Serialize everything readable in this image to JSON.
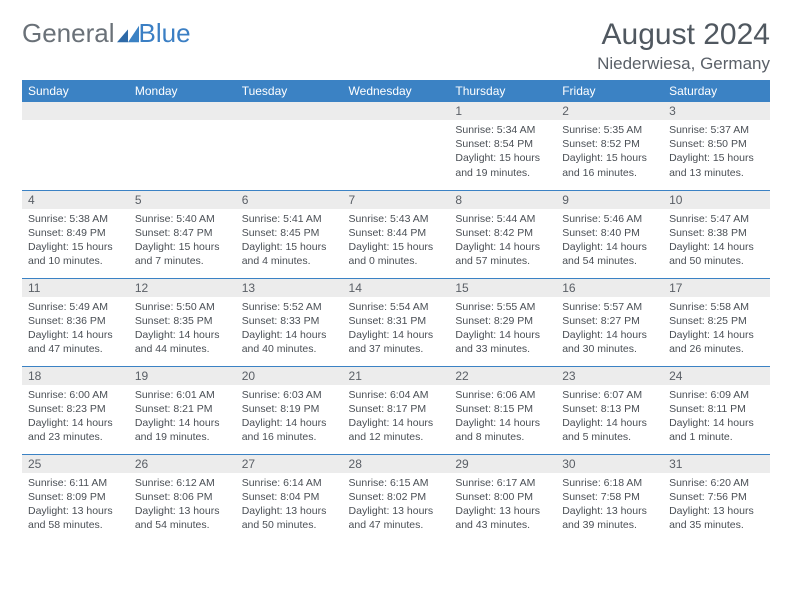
{
  "brand": {
    "part1": "General",
    "part2": "Blue"
  },
  "title": "August 2024",
  "location": "Niederwiesa, Germany",
  "colors": {
    "header_bg": "#3b82c4",
    "header_text": "#ffffff",
    "daynum_bg": "#ececec",
    "text": "#4a4f55",
    "rule": "#3b82c4"
  },
  "weekdays": [
    "Sunday",
    "Monday",
    "Tuesday",
    "Wednesday",
    "Thursday",
    "Friday",
    "Saturday"
  ],
  "weeks": [
    [
      null,
      null,
      null,
      null,
      {
        "n": "1",
        "sr": "Sunrise: 5:34 AM",
        "ss": "Sunset: 8:54 PM",
        "d1": "Daylight: 15 hours",
        "d2": "and 19 minutes."
      },
      {
        "n": "2",
        "sr": "Sunrise: 5:35 AM",
        "ss": "Sunset: 8:52 PM",
        "d1": "Daylight: 15 hours",
        "d2": "and 16 minutes."
      },
      {
        "n": "3",
        "sr": "Sunrise: 5:37 AM",
        "ss": "Sunset: 8:50 PM",
        "d1": "Daylight: 15 hours",
        "d2": "and 13 minutes."
      }
    ],
    [
      {
        "n": "4",
        "sr": "Sunrise: 5:38 AM",
        "ss": "Sunset: 8:49 PM",
        "d1": "Daylight: 15 hours",
        "d2": "and 10 minutes."
      },
      {
        "n": "5",
        "sr": "Sunrise: 5:40 AM",
        "ss": "Sunset: 8:47 PM",
        "d1": "Daylight: 15 hours",
        "d2": "and 7 minutes."
      },
      {
        "n": "6",
        "sr": "Sunrise: 5:41 AM",
        "ss": "Sunset: 8:45 PM",
        "d1": "Daylight: 15 hours",
        "d2": "and 4 minutes."
      },
      {
        "n": "7",
        "sr": "Sunrise: 5:43 AM",
        "ss": "Sunset: 8:44 PM",
        "d1": "Daylight: 15 hours",
        "d2": "and 0 minutes."
      },
      {
        "n": "8",
        "sr": "Sunrise: 5:44 AM",
        "ss": "Sunset: 8:42 PM",
        "d1": "Daylight: 14 hours",
        "d2": "and 57 minutes."
      },
      {
        "n": "9",
        "sr": "Sunrise: 5:46 AM",
        "ss": "Sunset: 8:40 PM",
        "d1": "Daylight: 14 hours",
        "d2": "and 54 minutes."
      },
      {
        "n": "10",
        "sr": "Sunrise: 5:47 AM",
        "ss": "Sunset: 8:38 PM",
        "d1": "Daylight: 14 hours",
        "d2": "and 50 minutes."
      }
    ],
    [
      {
        "n": "11",
        "sr": "Sunrise: 5:49 AM",
        "ss": "Sunset: 8:36 PM",
        "d1": "Daylight: 14 hours",
        "d2": "and 47 minutes."
      },
      {
        "n": "12",
        "sr": "Sunrise: 5:50 AM",
        "ss": "Sunset: 8:35 PM",
        "d1": "Daylight: 14 hours",
        "d2": "and 44 minutes."
      },
      {
        "n": "13",
        "sr": "Sunrise: 5:52 AM",
        "ss": "Sunset: 8:33 PM",
        "d1": "Daylight: 14 hours",
        "d2": "and 40 minutes."
      },
      {
        "n": "14",
        "sr": "Sunrise: 5:54 AM",
        "ss": "Sunset: 8:31 PM",
        "d1": "Daylight: 14 hours",
        "d2": "and 37 minutes."
      },
      {
        "n": "15",
        "sr": "Sunrise: 5:55 AM",
        "ss": "Sunset: 8:29 PM",
        "d1": "Daylight: 14 hours",
        "d2": "and 33 minutes."
      },
      {
        "n": "16",
        "sr": "Sunrise: 5:57 AM",
        "ss": "Sunset: 8:27 PM",
        "d1": "Daylight: 14 hours",
        "d2": "and 30 minutes."
      },
      {
        "n": "17",
        "sr": "Sunrise: 5:58 AM",
        "ss": "Sunset: 8:25 PM",
        "d1": "Daylight: 14 hours",
        "d2": "and 26 minutes."
      }
    ],
    [
      {
        "n": "18",
        "sr": "Sunrise: 6:00 AM",
        "ss": "Sunset: 8:23 PM",
        "d1": "Daylight: 14 hours",
        "d2": "and 23 minutes."
      },
      {
        "n": "19",
        "sr": "Sunrise: 6:01 AM",
        "ss": "Sunset: 8:21 PM",
        "d1": "Daylight: 14 hours",
        "d2": "and 19 minutes."
      },
      {
        "n": "20",
        "sr": "Sunrise: 6:03 AM",
        "ss": "Sunset: 8:19 PM",
        "d1": "Daylight: 14 hours",
        "d2": "and 16 minutes."
      },
      {
        "n": "21",
        "sr": "Sunrise: 6:04 AM",
        "ss": "Sunset: 8:17 PM",
        "d1": "Daylight: 14 hours",
        "d2": "and 12 minutes."
      },
      {
        "n": "22",
        "sr": "Sunrise: 6:06 AM",
        "ss": "Sunset: 8:15 PM",
        "d1": "Daylight: 14 hours",
        "d2": "and 8 minutes."
      },
      {
        "n": "23",
        "sr": "Sunrise: 6:07 AM",
        "ss": "Sunset: 8:13 PM",
        "d1": "Daylight: 14 hours",
        "d2": "and 5 minutes."
      },
      {
        "n": "24",
        "sr": "Sunrise: 6:09 AM",
        "ss": "Sunset: 8:11 PM",
        "d1": "Daylight: 14 hours",
        "d2": "and 1 minute."
      }
    ],
    [
      {
        "n": "25",
        "sr": "Sunrise: 6:11 AM",
        "ss": "Sunset: 8:09 PM",
        "d1": "Daylight: 13 hours",
        "d2": "and 58 minutes."
      },
      {
        "n": "26",
        "sr": "Sunrise: 6:12 AM",
        "ss": "Sunset: 8:06 PM",
        "d1": "Daylight: 13 hours",
        "d2": "and 54 minutes."
      },
      {
        "n": "27",
        "sr": "Sunrise: 6:14 AM",
        "ss": "Sunset: 8:04 PM",
        "d1": "Daylight: 13 hours",
        "d2": "and 50 minutes."
      },
      {
        "n": "28",
        "sr": "Sunrise: 6:15 AM",
        "ss": "Sunset: 8:02 PM",
        "d1": "Daylight: 13 hours",
        "d2": "and 47 minutes."
      },
      {
        "n": "29",
        "sr": "Sunrise: 6:17 AM",
        "ss": "Sunset: 8:00 PM",
        "d1": "Daylight: 13 hours",
        "d2": "and 43 minutes."
      },
      {
        "n": "30",
        "sr": "Sunrise: 6:18 AM",
        "ss": "Sunset: 7:58 PM",
        "d1": "Daylight: 13 hours",
        "d2": "and 39 minutes."
      },
      {
        "n": "31",
        "sr": "Sunrise: 6:20 AM",
        "ss": "Sunset: 7:56 PM",
        "d1": "Daylight: 13 hours",
        "d2": "and 35 minutes."
      }
    ]
  ]
}
